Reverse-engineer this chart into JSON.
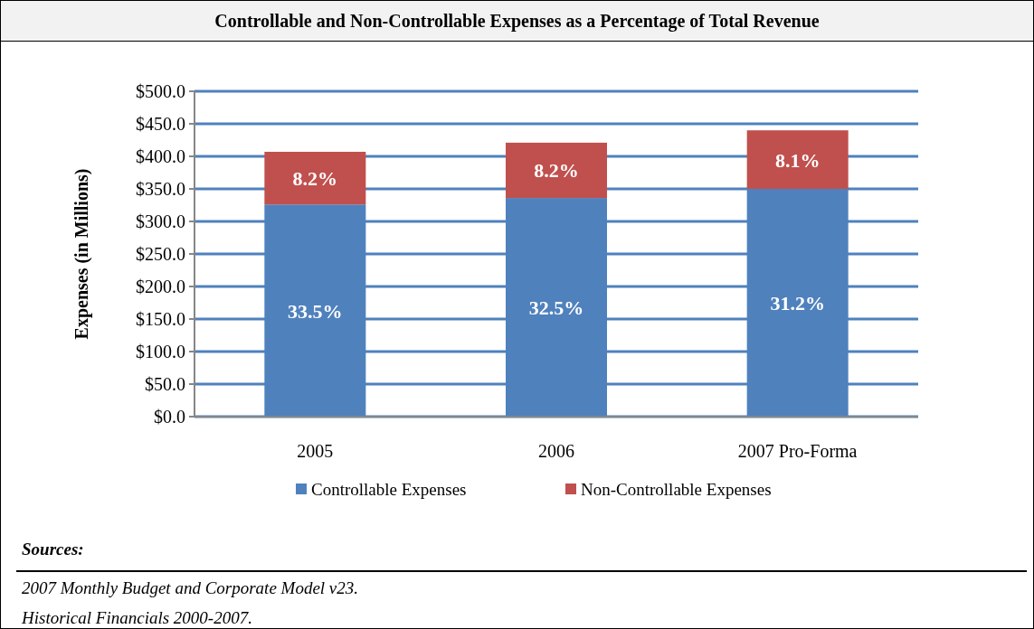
{
  "chart_data": {
    "type": "bar",
    "title": "Controllable and Non-Controllable Expenses as a Percentage of Total Revenue",
    "ylabel": "Expenses (in Millions)",
    "categories": [
      "2005",
      "2006",
      "2007 Pro-Forma"
    ],
    "series": [
      {
        "name": "Controllable Expenses",
        "color": "#4f81bd",
        "values": [
          326,
          336,
          350
        ]
      },
      {
        "name": "Non-Controllable Expenses",
        "color": "#c0504d",
        "values": [
          81,
          85,
          90
        ]
      }
    ],
    "stacked": true,
    "ylim": [
      0,
      500
    ],
    "yticks": [
      {
        "value": 0,
        "label": "$0.0"
      },
      {
        "value": 50,
        "label": "$50.0"
      },
      {
        "value": 100,
        "label": "$100.0"
      },
      {
        "value": 150,
        "label": "$150.0"
      },
      {
        "value": 200,
        "label": "$200.0"
      },
      {
        "value": 250,
        "label": "$250.0"
      },
      {
        "value": 300,
        "label": "$300.0"
      },
      {
        "value": 350,
        "label": "$350.0"
      },
      {
        "value": 400,
        "label": "$400.0"
      },
      {
        "value": 450,
        "label": "$450.0"
      },
      {
        "value": 500,
        "label": "$500.0"
      }
    ],
    "grid": "y",
    "legend": "bottom",
    "annotations": [
      "33.5%",
      "32.5%",
      "31.2%",
      "8.2%",
      "8.2%",
      "8.1%",
      "Sources:",
      "2007 Monthly Budget and Corporate Model v23.",
      "Historical Financials 2000-2007."
    ]
  }
}
